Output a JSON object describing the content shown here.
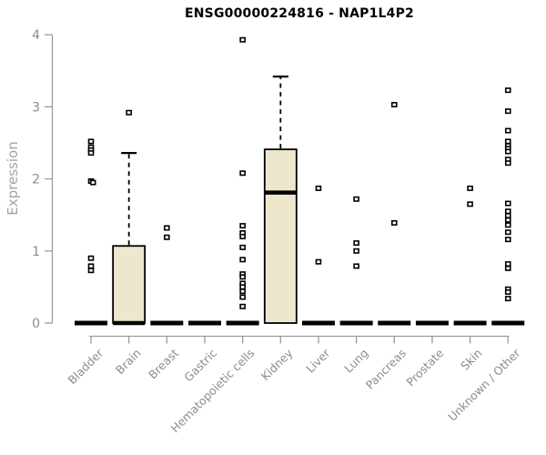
{
  "title": "ENSG00000224816 - NAP1L4P2",
  "chart_data": {
    "type": "boxplot",
    "title": "ENSG00000224816 - NAP1L4P2",
    "xlabel": "",
    "ylabel": "Expression",
    "ylim": [
      0,
      4
    ],
    "yticks": [
      0,
      1,
      2,
      3,
      4
    ],
    "grid": false,
    "legend": false,
    "categories": [
      "Bladder",
      "Brain",
      "Breast",
      "Gastric",
      "Hematopoietic cells",
      "Kidney",
      "Liver",
      "Lung",
      "Pancreas",
      "Prostate",
      "Skin",
      "Unknown / Other"
    ],
    "boxes": [
      {
        "category": "Bladder",
        "q1": 0,
        "median": 0,
        "q3": 0,
        "whisker_low": 0,
        "whisker_high": 0,
        "points": [
          2.52,
          2.44,
          2.4,
          2.36,
          1.97,
          1.95,
          0.9,
          0.79,
          0.73
        ]
      },
      {
        "category": "Brain",
        "q1": 0,
        "median": 0,
        "q3": 1.07,
        "whisker_low": 0,
        "whisker_high": 2.36,
        "points": [
          2.92
        ]
      },
      {
        "category": "Breast",
        "q1": 0,
        "median": 0,
        "q3": 0,
        "whisker_low": 0,
        "whisker_high": 0,
        "points": [
          1.32,
          1.19
        ]
      },
      {
        "category": "Gastric",
        "q1": 0,
        "median": 0,
        "q3": 0,
        "whisker_low": 0,
        "whisker_high": 0,
        "points": []
      },
      {
        "category": "Hematopoietic cells",
        "q1": 0,
        "median": 0,
        "q3": 0,
        "whisker_low": 0,
        "whisker_high": 0,
        "points": [
          3.93,
          2.08,
          1.35,
          1.25,
          1.2,
          1.05,
          0.88,
          0.68,
          0.64,
          0.55,
          0.5,
          0.44,
          0.36,
          0.23
        ]
      },
      {
        "category": "Kidney",
        "q1": 0,
        "median": 1.81,
        "q3": 2.41,
        "whisker_low": 0,
        "whisker_high": 3.42,
        "points": []
      },
      {
        "category": "Liver",
        "q1": 0,
        "median": 0,
        "q3": 0,
        "whisker_low": 0,
        "whisker_high": 0,
        "points": [
          1.87,
          0.85
        ]
      },
      {
        "category": "Lung",
        "q1": 0,
        "median": 0,
        "q3": 0,
        "whisker_low": 0,
        "whisker_high": 0,
        "points": [
          1.72,
          1.11,
          1.0,
          0.79
        ]
      },
      {
        "category": "Pancreas",
        "q1": 0,
        "median": 0,
        "q3": 0,
        "whisker_low": 0,
        "whisker_high": 0,
        "points": [
          3.03,
          1.39
        ]
      },
      {
        "category": "Prostate",
        "q1": 0,
        "median": 0,
        "q3": 0,
        "whisker_low": 0,
        "whisker_high": 0,
        "points": []
      },
      {
        "category": "Skin",
        "q1": 0,
        "median": 0,
        "q3": 0,
        "whisker_low": 0,
        "whisker_high": 0,
        "points": [
          1.87,
          1.65
        ]
      },
      {
        "category": "Unknown / Other",
        "q1": 0,
        "median": 0,
        "q3": 0,
        "whisker_low": 0,
        "whisker_high": 0,
        "points": [
          3.23,
          2.94,
          2.67,
          2.52,
          2.46,
          2.42,
          2.38,
          2.27,
          2.22,
          1.66,
          1.55,
          1.49,
          1.43,
          1.36,
          1.26,
          1.16,
          0.82,
          0.76,
          0.47,
          0.43,
          0.34
        ]
      }
    ]
  },
  "colors": {
    "box_fill": "#ece7cd",
    "box_stroke": "#000000",
    "median": "#000000",
    "point_fill": "#ffffff",
    "point_stroke": "#000000",
    "axis": "#9b9b9b",
    "tick_label": "#8c8c8c",
    "y_label": "#a3a3a3",
    "title": "#000000",
    "background": "#ffffff"
  }
}
